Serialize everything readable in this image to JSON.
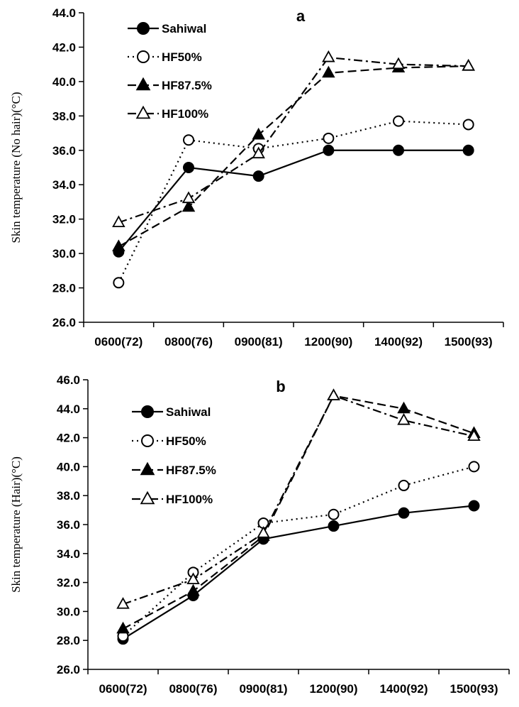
{
  "chart_data": [
    {
      "type": "line",
      "title": "a",
      "ylabel": "Skin temperature (No hair)(°C)",
      "xlabel": "",
      "categories": [
        "0600(72)",
        "0800(76)",
        "0900(81)",
        "1200(90)",
        "1400(92)",
        "1500(93)"
      ],
      "ylim": [
        26.0,
        44.0
      ],
      "yticks": [
        "26.0",
        "28.0",
        "30.0",
        "32.0",
        "34.0",
        "36.0",
        "38.0",
        "40.0",
        "42.0",
        "44.0"
      ],
      "grid": false,
      "legend_position": "top-left",
      "series": [
        {
          "name": "Sahiwal",
          "values": [
            30.1,
            35.0,
            34.5,
            36.0,
            36.0,
            36.0
          ]
        },
        {
          "name": "HF50%",
          "values": [
            28.3,
            36.6,
            36.1,
            36.7,
            37.7,
            37.5
          ]
        },
        {
          "name": "HF87.5%",
          "values": [
            30.4,
            32.7,
            36.9,
            40.5,
            40.8,
            40.9
          ]
        },
        {
          "name": "HF100%",
          "values": [
            31.8,
            33.2,
            35.8,
            41.4,
            41.0,
            40.9
          ]
        }
      ]
    },
    {
      "type": "line",
      "title": "b",
      "ylabel": "Skin temperature (Hair)(°C)",
      "xlabel": "",
      "categories": [
        "0600(72)",
        "0800(76)",
        "0900(81)",
        "1200(90)",
        "1400(92)",
        "1500(93)"
      ],
      "ylim": [
        26.0,
        46.0
      ],
      "yticks": [
        "26.0",
        "28.0",
        "30.0",
        "32.0",
        "34.0",
        "36.0",
        "38.0",
        "40.0",
        "42.0",
        "44.0",
        "46.0"
      ],
      "grid": false,
      "legend_position": "top-left",
      "series": [
        {
          "name": "Sahiwal",
          "values": [
            28.1,
            31.1,
            35.0,
            35.9,
            36.8,
            37.3
          ]
        },
        {
          "name": "HF50%",
          "values": [
            28.3,
            32.7,
            36.1,
            36.7,
            38.7,
            40.0
          ]
        },
        {
          "name": "HF87.5%",
          "values": [
            28.8,
            31.4,
            35.2,
            44.9,
            44.0,
            42.3
          ]
        },
        {
          "name": "HF100%",
          "values": [
            30.5,
            32.2,
            35.4,
            44.9,
            43.2,
            42.1
          ]
        }
      ]
    }
  ]
}
